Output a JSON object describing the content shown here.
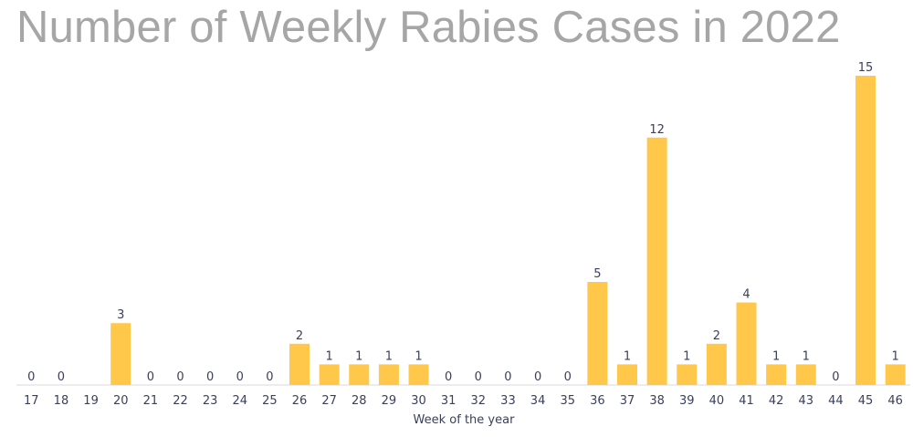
{
  "chart_data": {
    "type": "bar",
    "title": "Number of Weekly Rabies Cases in 2022",
    "xlabel": "Week of the year",
    "ylabel": "",
    "ylim": [
      0,
      15
    ],
    "grid": false,
    "categories": [
      "17",
      "18",
      "19",
      "20",
      "21",
      "22",
      "23",
      "24",
      "25",
      "26",
      "27",
      "28",
      "29",
      "30",
      "31",
      "32",
      "33",
      "34",
      "35",
      "36",
      "37",
      "38",
      "39",
      "40",
      "41",
      "42",
      "43",
      "44",
      "45",
      "46"
    ],
    "values": [
      0,
      0,
      null,
      3,
      0,
      0,
      0,
      0,
      0,
      2,
      1,
      1,
      1,
      1,
      0,
      0,
      0,
      0,
      0,
      5,
      1,
      12,
      1,
      2,
      4,
      1,
      1,
      0,
      15,
      1
    ],
    "colors": {
      "bar": "#ffc84a",
      "text": "#3a3f5c",
      "title": "#a6a6a6"
    }
  }
}
